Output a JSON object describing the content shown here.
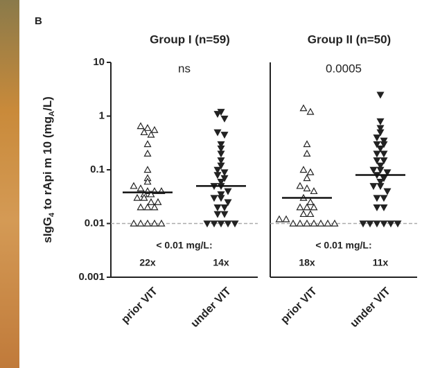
{
  "panel_label": "B",
  "ylabel": [
    "sIgG",
    "4",
    " to rApi m 10 (mg",
    "A",
    "/L)"
  ],
  "chart_data": [
    {
      "type": "scatter",
      "title": "Group I (n=59)",
      "log": true,
      "ylim": [
        0.001,
        10
      ],
      "yticks": [
        0.001,
        0.01,
        0.1,
        1,
        10
      ],
      "categories": [
        "prior VIT",
        "under VIT"
      ],
      "markers": [
        "triangle-open",
        "triangle-down-filled"
      ],
      "color": "#222222",
      "values": [
        [
          0.65,
          0.6,
          0.55,
          0.5,
          0.45,
          0.3,
          0.2,
          0.1,
          0.07,
          0.06,
          0.05,
          0.045,
          0.04,
          0.04,
          0.04,
          0.035,
          0.035,
          0.03,
          0.03,
          0.025,
          0.025,
          0.02,
          0.02,
          0.02,
          0.01,
          0.01,
          0.01,
          0.01,
          0.01
        ],
        [
          1.2,
          1.1,
          0.9,
          0.5,
          0.45,
          0.3,
          0.25,
          0.2,
          0.15,
          0.12,
          0.1,
          0.09,
          0.08,
          0.07,
          0.06,
          0.05,
          0.05,
          0.04,
          0.035,
          0.03,
          0.03,
          0.025,
          0.02,
          0.02,
          0.015,
          0.015,
          0.01,
          0.01,
          0.01,
          0.01,
          0.01
        ]
      ],
      "medians": [
        0.038,
        0.05
      ],
      "reference_line": 0.01,
      "annotation": "ns",
      "below_label": "< 0.01 mg/L:",
      "below_counts": [
        "22x",
        "14x"
      ]
    },
    {
      "type": "scatter",
      "title": "Group II (n=50)",
      "log": true,
      "ylim": [
        0.001,
        10
      ],
      "categories": [
        "prior VIT",
        "under VIT"
      ],
      "markers": [
        "triangle-open",
        "triangle-down-filled"
      ],
      "color": "#222222",
      "values": [
        [
          1.4,
          1.2,
          0.3,
          0.2,
          0.1,
          0.09,
          0.07,
          0.05,
          0.045,
          0.04,
          0.03,
          0.025,
          0.02,
          0.02,
          0.02,
          0.015,
          0.015,
          0.012,
          0.012,
          0.01,
          0.01,
          0.01,
          0.01,
          0.01,
          0.01,
          0.01
        ],
        [
          2.5,
          0.8,
          0.6,
          0.5,
          0.4,
          0.35,
          0.3,
          0.3,
          0.25,
          0.2,
          0.2,
          0.15,
          0.15,
          0.12,
          0.1,
          0.1,
          0.09,
          0.08,
          0.07,
          0.06,
          0.05,
          0.05,
          0.04,
          0.03,
          0.03,
          0.02,
          0.02,
          0.01,
          0.01,
          0.01,
          0.01,
          0.01,
          0.01
        ]
      ],
      "medians": [
        0.03,
        0.08
      ],
      "reference_line": 0.01,
      "annotation": "0.0005",
      "below_label": "< 0.01 mg/L:",
      "below_counts": [
        "18x",
        "11x"
      ]
    }
  ]
}
